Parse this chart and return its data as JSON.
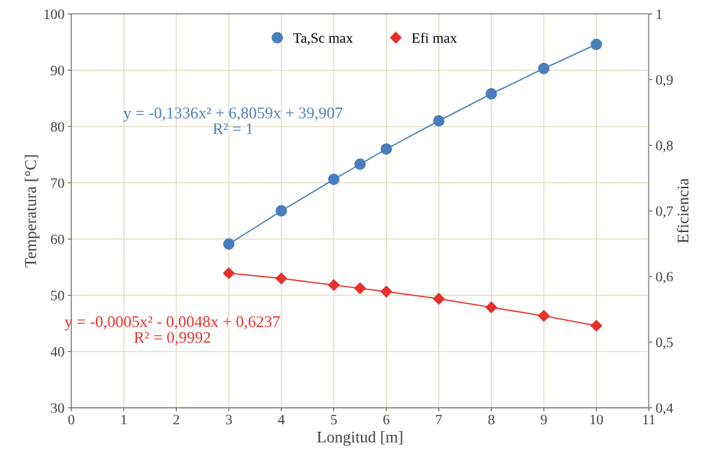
{
  "chart_data": {
    "type": "line",
    "xlabel": "Longitud [m]",
    "ylabel": "Temperatura [°C]",
    "y2label": "Eficiencia",
    "x": [
      3,
      4,
      5,
      5.5,
      6,
      7,
      8,
      9,
      10
    ],
    "series": [
      {
        "name": "Ta,Sc max",
        "color": "#4a7ebb",
        "marker": "circle",
        "values": [
          59.1,
          65.0,
          70.6,
          73.3,
          76.0,
          81.0,
          85.8,
          90.3,
          94.6
        ]
      },
      {
        "name": "Efi max",
        "color": "#e8302a",
        "marker": "diamond",
        "axis": "y2",
        "values": [
          0.605,
          0.597,
          0.587,
          0.582,
          0.577,
          0.566,
          0.553,
          0.54,
          0.525
        ]
      }
    ],
    "xlim": [
      0,
      11
    ],
    "xticks": [
      0,
      1,
      2,
      3,
      4,
      5,
      6,
      7,
      8,
      9,
      10,
      11
    ],
    "ylim": [
      30,
      100
    ],
    "yticks": [
      30,
      40,
      50,
      60,
      70,
      80,
      90,
      100
    ],
    "y2lim": [
      0.4,
      1
    ],
    "y2ticks": [
      {
        "value": 0.4,
        "label": "0,4"
      },
      {
        "value": 0.5,
        "label": "0,5"
      },
      {
        "value": 0.6,
        "label": "0,6"
      },
      {
        "value": 0.7,
        "label": "0,7"
      },
      {
        "value": 0.8,
        "label": "0,8"
      },
      {
        "value": 0.9,
        "label": "0,9"
      },
      {
        "value": 1,
        "label": "1"
      }
    ],
    "annotations": [
      "y = -0,1336x² + 6,8059x + 39,907",
      "R² = 1",
      "y = -0,0005x² - 0,0048x + 0,6237",
      "R² = 0,9992"
    ],
    "grid": true,
    "legend": "top",
    "line_style": "solid"
  }
}
